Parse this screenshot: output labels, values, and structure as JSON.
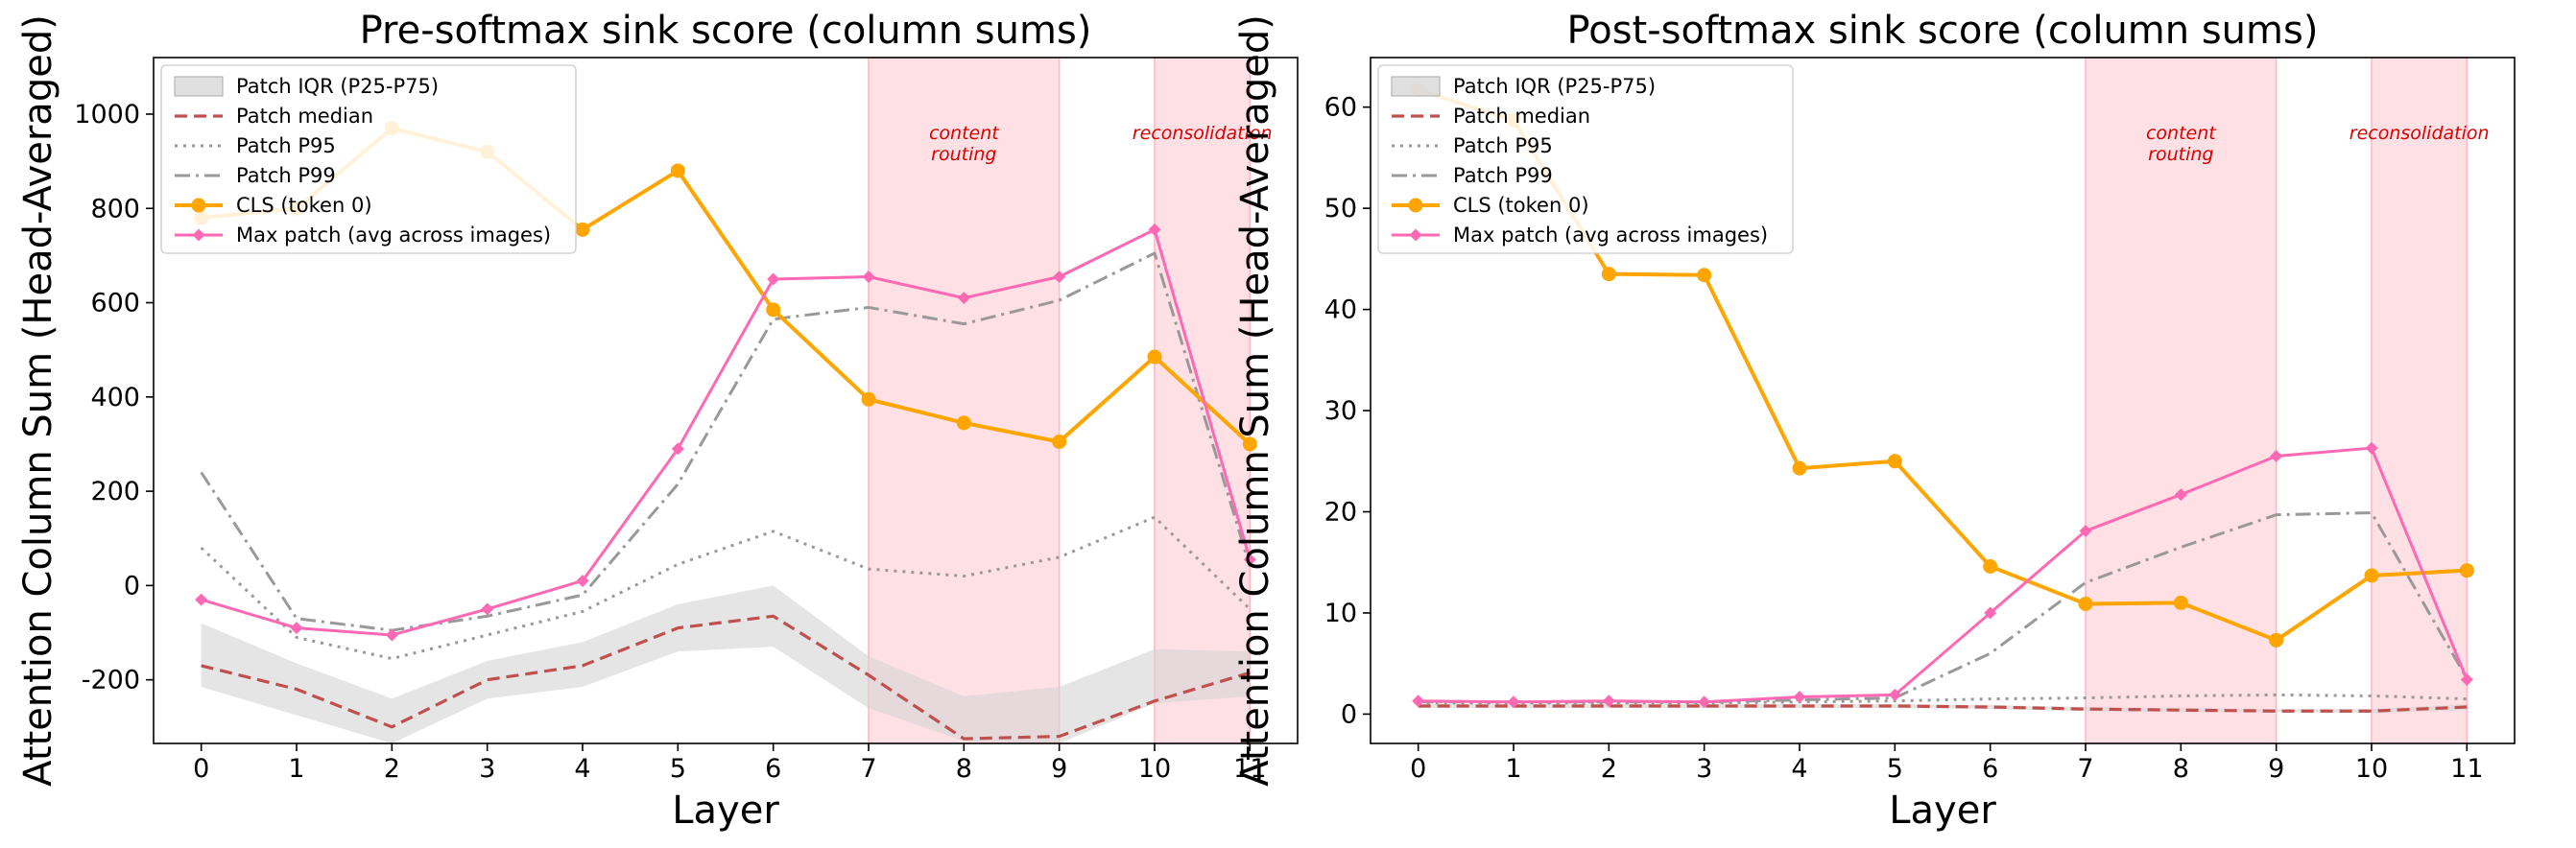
{
  "figure": {
    "shared_ylabel": "Attention Column Sum (Head-Averaged)",
    "colors": {
      "iqr_fill": "#d3d3d3",
      "median": "#c0504d",
      "p95": "#999999",
      "p99": "#999999",
      "cls": "#ffa500",
      "maxpatch": "#ff69b4",
      "band": "#ffb6c1",
      "annotation": "#dd0000"
    }
  },
  "chart_data": [
    {
      "type": "line",
      "title": "Pre-softmax sink score (column sums)",
      "xlabel": "Layer",
      "ylabel": "Attention Column Sum (Head-Averaged)",
      "x": [
        0,
        1,
        2,
        3,
        4,
        5,
        6,
        7,
        8,
        9,
        10,
        11
      ],
      "xlim": [
        -0.5,
        11.5
      ],
      "ylim": [
        -335,
        1120
      ],
      "yticks": [
        -200,
        0,
        200,
        400,
        600,
        800,
        1000
      ],
      "legend_position": "upper-left",
      "legend": [
        {
          "key": "iqr",
          "label": "Patch IQR (P25-P75)"
        },
        {
          "key": "median",
          "label": "Patch median"
        },
        {
          "key": "p95",
          "label": "Patch P95"
        },
        {
          "key": "p99",
          "label": "Patch P99"
        },
        {
          "key": "cls",
          "label": "CLS (token 0)"
        },
        {
          "key": "maxpatch",
          "label": "Max patch (avg across images)"
        }
      ],
      "bands": [
        {
          "x0": 7,
          "x1": 9,
          "label": "content routing"
        },
        {
          "x0": 10,
          "x1": 11,
          "label": "reconsolidation"
        }
      ],
      "iqr": {
        "p25": [
          -215,
          -275,
          -335,
          -240,
          -215,
          -140,
          -130,
          -260,
          -330,
          -335,
          -250,
          -235
        ],
        "p75": [
          -80,
          -165,
          -240,
          -160,
          -120,
          -40,
          0,
          -150,
          -235,
          -215,
          -135,
          -140
        ]
      },
      "series": [
        {
          "key": "median",
          "name": "Patch median",
          "values": [
            -170,
            -220,
            -300,
            -200,
            -170,
            -90,
            -65,
            -190,
            -325,
            -320,
            -245,
            -185
          ]
        },
        {
          "key": "p95",
          "name": "Patch P95",
          "values": [
            80,
            -110,
            -155,
            -105,
            -55,
            45,
            115,
            35,
            20,
            60,
            145,
            -50
          ]
        },
        {
          "key": "p99",
          "name": "Patch P99",
          "values": [
            240,
            -70,
            -95,
            -65,
            -20,
            215,
            565,
            590,
            555,
            605,
            705,
            40
          ]
        },
        {
          "key": "cls",
          "name": "CLS (token 0)",
          "values": [
            780,
            800,
            970,
            920,
            755,
            880,
            585,
            395,
            345,
            305,
            485,
            300
          ]
        },
        {
          "key": "maxpatch",
          "name": "Max patch (avg across images)",
          "values": [
            -30,
            -90,
            -105,
            -50,
            10,
            290,
            650,
            655,
            610,
            655,
            755,
            55
          ]
        }
      ]
    },
    {
      "type": "line",
      "title": "Post-softmax sink score (column sums)",
      "xlabel": "Layer",
      "ylabel": "Attention Column Sum (Head-Averaged)",
      "x": [
        0,
        1,
        2,
        3,
        4,
        5,
        6,
        7,
        8,
        9,
        10,
        11
      ],
      "xlim": [
        -0.5,
        11.5
      ],
      "ylim": [
        -2.9,
        64.9
      ],
      "yticks": [
        0,
        10,
        20,
        30,
        40,
        50,
        60
      ],
      "legend_position": "upper-left",
      "legend": [
        {
          "key": "iqr",
          "label": "Patch IQR (P25-P75)"
        },
        {
          "key": "median",
          "label": "Patch median"
        },
        {
          "key": "p95",
          "label": "Patch P95"
        },
        {
          "key": "p99",
          "label": "Patch P99"
        },
        {
          "key": "cls",
          "label": "CLS (token 0)"
        },
        {
          "key": "maxpatch",
          "label": "Max patch (avg across images)"
        }
      ],
      "bands": [
        {
          "x0": 7,
          "x1": 9,
          "label": "content routing"
        },
        {
          "x0": 10,
          "x1": 11,
          "label": "reconsolidation"
        }
      ],
      "iqr": {
        "p25": [
          0.6,
          0.6,
          0.6,
          0.6,
          0.6,
          0.6,
          0.5,
          0.3,
          0.2,
          0.2,
          0.1,
          0.4
        ],
        "p75": [
          1.0,
          1.0,
          1.0,
          1.0,
          1.0,
          1.0,
          0.9,
          0.7,
          0.6,
          0.5,
          0.5,
          1.0
        ]
      },
      "series": [
        {
          "key": "median",
          "name": "Patch median",
          "values": [
            0.8,
            0.8,
            0.8,
            0.8,
            0.8,
            0.8,
            0.7,
            0.5,
            0.4,
            0.3,
            0.3,
            0.7
          ]
        },
        {
          "key": "p95",
          "name": "Patch P95",
          "values": [
            1.1,
            1.1,
            1.1,
            1.1,
            1.2,
            1.3,
            1.5,
            1.6,
            1.8,
            1.9,
            1.8,
            1.5
          ]
        },
        {
          "key": "p99",
          "name": "Patch P99",
          "values": [
            1.2,
            1.2,
            1.2,
            1.2,
            1.4,
            1.6,
            6.0,
            13.0,
            16.5,
            19.7,
            19.9,
            3.5
          ]
        },
        {
          "key": "cls",
          "name": "CLS (token 0)",
          "values": [
            61.7,
            58.7,
            43.5,
            43.4,
            24.3,
            25.0,
            14.6,
            10.9,
            11.0,
            7.3,
            13.7,
            14.2
          ]
        },
        {
          "key": "maxpatch",
          "name": "Max patch (avg across images)",
          "values": [
            1.3,
            1.2,
            1.3,
            1.2,
            1.7,
            1.9,
            10.0,
            18.1,
            21.7,
            25.5,
            26.3,
            3.4
          ]
        }
      ]
    }
  ]
}
